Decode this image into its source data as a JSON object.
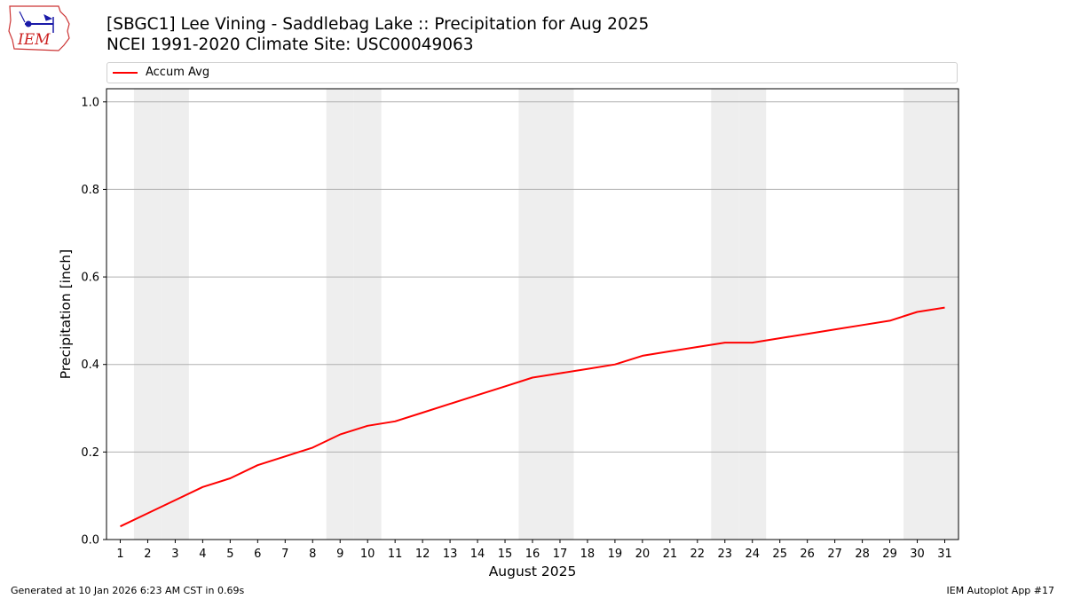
{
  "header": {
    "title_line1": "[SBGC1] Lee Vining - Saddlebag Lake :: Precipitation for Aug 2025",
    "title_line2": "NCEI 1991-2020 Climate Site: USC00049063",
    "logo_text": "IEM"
  },
  "legend": {
    "label": "Accum Avg"
  },
  "footer": {
    "left": "Generated at 10 Jan 2026 6:23 AM CST in 0.69s",
    "right": "IEM Autoplot App #17"
  },
  "colors": {
    "series": "#ff0000",
    "weekend_band": "#eeeeee",
    "grid": "#b0b0b0"
  },
  "chart_data": {
    "type": "line",
    "xlabel": "August 2025",
    "ylabel": "Precipitation [inch]",
    "xlim": [
      0.5,
      31.5
    ],
    "ylim": [
      0,
      1.03
    ],
    "yticks": [
      0.0,
      0.2,
      0.4,
      0.6,
      0.8,
      1.0
    ],
    "ytick_labels": [
      "0.0",
      "0.2",
      "0.4",
      "0.6",
      "0.8",
      "1.0"
    ],
    "x": [
      1,
      2,
      3,
      4,
      5,
      6,
      7,
      8,
      9,
      10,
      11,
      12,
      13,
      14,
      15,
      16,
      17,
      18,
      19,
      20,
      21,
      22,
      23,
      24,
      25,
      26,
      27,
      28,
      29,
      30,
      31
    ],
    "weekend_days": [
      2,
      3,
      9,
      10,
      16,
      17,
      23,
      24,
      30,
      31
    ],
    "grid": "y",
    "series": [
      {
        "name": "Accum Avg",
        "values": [
          0.03,
          0.06,
          0.09,
          0.12,
          0.14,
          0.17,
          0.19,
          0.21,
          0.24,
          0.26,
          0.27,
          0.29,
          0.31,
          0.33,
          0.35,
          0.37,
          0.38,
          0.39,
          0.4,
          0.42,
          0.43,
          0.44,
          0.45,
          0.45,
          0.46,
          0.47,
          0.48,
          0.49,
          0.5,
          0.52,
          0.53
        ]
      }
    ]
  }
}
